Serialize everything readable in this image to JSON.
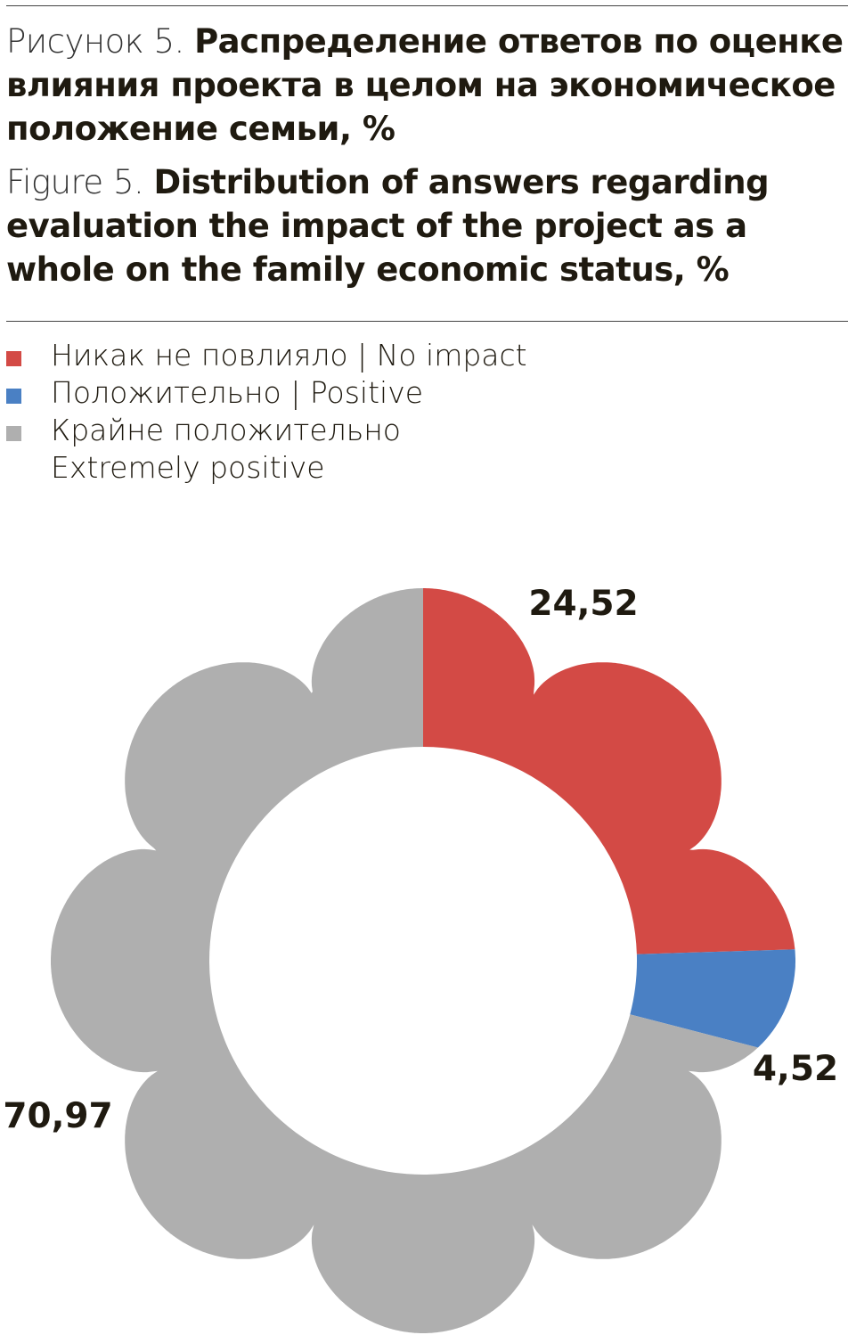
{
  "title_ru": {
    "lead": "Рисунок 5.",
    "text": "Распределение ответов по оценке влияния проекта в целом на экономическое положение семьи, %"
  },
  "title_en": {
    "lead": "Figure 5.",
    "text": "Distribution of answers regarding evaluation the impact of the project as a whole on the family economic status, %"
  },
  "chart_data": {
    "type": "pie",
    "style": "flower-shaped donut",
    "start": "top, clockwise",
    "legend_placement": "top-left",
    "slices": [
      {
        "name": "Никак не повлияло | No impact",
        "value": 24.52,
        "label": "24,52",
        "color": "#d34a45"
      },
      {
        "name": "Положительно | Positive",
        "value": 4.52,
        "label": "4,52",
        "color": "#4a80c4"
      },
      {
        "name": "Крайне положительно Extremely positive",
        "value": 70.97,
        "label": "70,97",
        "color": "#afafaf"
      }
    ]
  },
  "legend": [
    {
      "text": "Никак не повлияло  |  No impact",
      "color": "#d34a45"
    },
    {
      "text": "Положительно  |  Positive",
      "color": "#4a80c4"
    },
    {
      "text": "Крайне положительно",
      "text2": "Extremely positive",
      "color": "#afafaf"
    }
  ]
}
